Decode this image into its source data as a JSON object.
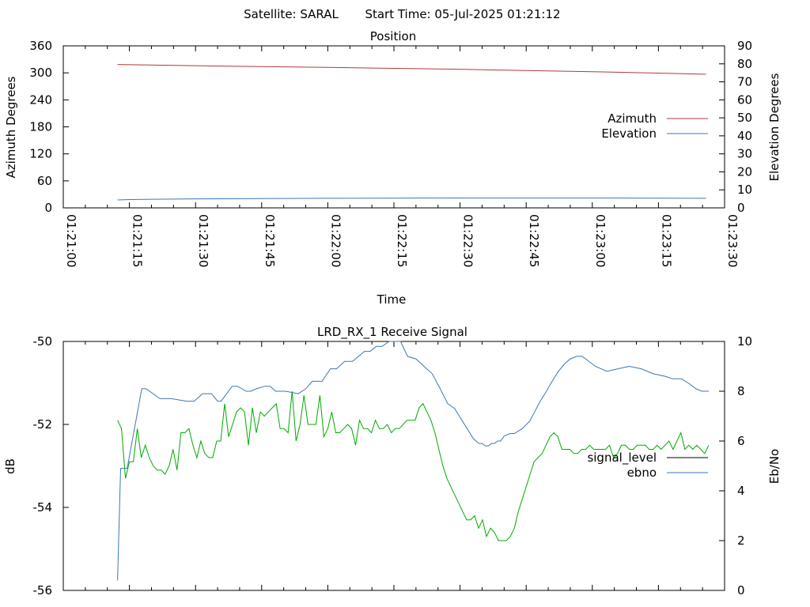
{
  "header": {
    "satellite": "Satellite: SARAL",
    "start_time": "Start Time: 05-Jul-2025 01:21:12"
  },
  "colors": {
    "azimuth": "#b03a3a",
    "elevation": "#3a78b4",
    "signal_level": "#00aa00",
    "ebno": "#3a78b4",
    "signal_legend": "#000000"
  },
  "chart_data": [
    {
      "type": "line",
      "title": "Position",
      "xlabel": "Time",
      "ylabel": "Azimuth Degrees",
      "y2label": "Elevation Degrees",
      "xlim": [
        0,
        150
      ],
      "ylim": [
        0,
        360
      ],
      "y2lim": [
        0,
        90
      ],
      "x_ticks": [
        "01:21:00",
        "01:21:15",
        "01:21:30",
        "01:21:45",
        "01:22:00",
        "01:22:15",
        "01:22:30",
        "01:22:45",
        "01:23:00",
        "01:23:15",
        "01:23:30"
      ],
      "y_ticks": [
        "0",
        "60",
        "120",
        "180",
        "240",
        "300",
        "360"
      ],
      "y2_ticks": [
        "0",
        "10",
        "20",
        "30",
        "40",
        "50",
        "60",
        "70",
        "80",
        "90"
      ],
      "legend_position": "right",
      "series": [
        {
          "name": "Azimuth",
          "axis": "y",
          "color_key": "azimuth",
          "x": [
            12.3,
            30,
            45,
            60,
            75,
            90,
            105,
            120,
            135,
            145.8
          ],
          "values": [
            318.5,
            316,
            314,
            312,
            310,
            308,
            305,
            302.5,
            299.5,
            297
          ]
        },
        {
          "name": "Elevation",
          "axis": "y2",
          "color_key": "elevation",
          "x": [
            12.3,
            15,
            20,
            30,
            45,
            60,
            75,
            90,
            105,
            120,
            135,
            145.8
          ],
          "values": [
            4.4,
            4.6,
            4.8,
            5.0,
            5.2,
            5.3,
            5.4,
            5.5,
            5.5,
            5.5,
            5.4,
            5.3
          ]
        }
      ]
    },
    {
      "type": "line",
      "title": "LRD_RX_1 Receive Signal",
      "xlabel": "",
      "ylabel": "dB",
      "y2label": "Eb/No",
      "xlim": [
        0,
        150
      ],
      "ylim": [
        -56,
        -50
      ],
      "y2lim": [
        0,
        10
      ],
      "x_ticks_labeled": false,
      "x_tick_count": 11,
      "y_ticks": [
        "-50",
        "-52",
        "-54",
        "-56"
      ],
      "y_tick_values": [
        -50,
        -52,
        -54,
        -56
      ],
      "y2_ticks": [
        "0",
        "2",
        "4",
        "6",
        "8",
        "10"
      ],
      "legend_position": "right",
      "series": [
        {
          "name": "signal_level",
          "axis": "y",
          "color_key": "signal_level",
          "legend_color_key": "signal_legend",
          "x": [
            12.3,
            13.2,
            14.1,
            15.0,
            15.9,
            16.8,
            17.7,
            18.6,
            19.5,
            20.4,
            21.3,
            22.2,
            23.1,
            24.0,
            24.9,
            25.8,
            26.7,
            27.6,
            28.5,
            29.4,
            30.3,
            31.2,
            32.1,
            33.0,
            33.9,
            34.8,
            35.7,
            36.6,
            37.5,
            38.4,
            39.3,
            40.2,
            41.1,
            42.0,
            42.9,
            43.8,
            44.7,
            45.6,
            46.5,
            47.4,
            48.3,
            49.2,
            50.1,
            51.0,
            51.9,
            52.8,
            53.7,
            54.6,
            55.5,
            56.4,
            57.3,
            58.2,
            59.1,
            60.0,
            60.9,
            61.8,
            62.7,
            63.6,
            64.5,
            65.4,
            66.3,
            67.2,
            68.1,
            69.0,
            69.9,
            70.8,
            71.7,
            72.6,
            73.5,
            74.4,
            75.3,
            76.2,
            77.1,
            78.0,
            78.9,
            79.8,
            80.7,
            81.6,
            82.5,
            83.4,
            84.3,
            85.2,
            86.1,
            87.0,
            87.9,
            88.8,
            89.7,
            90.6,
            91.5,
            92.4,
            93.3,
            94.2,
            95.1,
            96.0,
            96.9,
            97.8,
            98.7,
            99.6,
            100.5,
            101.4,
            102.3,
            103.2,
            104.1,
            105.0,
            105.9,
            106.8,
            107.7,
            108.6,
            109.5,
            110.4,
            111.3,
            112.2,
            113.1,
            114.0,
            114.9,
            115.8,
            116.7,
            117.6,
            118.5,
            119.4,
            120.3,
            121.2,
            122.1,
            123.0,
            123.9,
            124.8,
            125.7,
            126.6,
            127.5,
            128.4,
            129.3,
            130.2,
            131.1,
            132.0,
            132.9,
            133.8,
            134.7,
            135.6,
            136.5,
            137.4,
            138.3,
            139.2,
            140.1,
            141.0,
            141.9,
            142.8,
            143.7,
            144.6,
            145.5,
            146.4
          ],
          "values": [
            -51.9,
            -52.1,
            -53.3,
            -52.9,
            -52.9,
            -52.1,
            -52.8,
            -52.5,
            -52.8,
            -53.0,
            -53.1,
            -53.1,
            -53.2,
            -53.0,
            -52.6,
            -53.1,
            -52.2,
            -52.2,
            -52.1,
            -52.5,
            -52.8,
            -52.4,
            -52.7,
            -52.8,
            -52.8,
            -52.4,
            -52.4,
            -51.5,
            -52.3,
            -52.0,
            -51.7,
            -51.6,
            -51.7,
            -52.5,
            -51.6,
            -52.2,
            -51.7,
            -51.8,
            -51.7,
            -51.6,
            -51.5,
            -52.1,
            -52.1,
            -52.2,
            -51.2,
            -52.4,
            -52.0,
            -51.3,
            -52.0,
            -52.0,
            -52.0,
            -51.3,
            -52.3,
            -52.1,
            -51.7,
            -52.2,
            -52.2,
            -52.1,
            -52.0,
            -52.1,
            -52.5,
            -51.9,
            -52.1,
            -52.1,
            -52.2,
            -51.9,
            -52.1,
            -52.1,
            -52.0,
            -52.2,
            -52.1,
            -52.1,
            -52.0,
            -51.9,
            -51.9,
            -51.9,
            -51.6,
            -51.5,
            -51.7,
            -51.9,
            -52.2,
            -52.6,
            -53.0,
            -53.3,
            -53.5,
            -53.7,
            -53.9,
            -54.1,
            -54.3,
            -54.3,
            -54.2,
            -54.5,
            -54.3,
            -54.7,
            -54.5,
            -54.6,
            -54.8,
            -54.8,
            -54.8,
            -54.7,
            -54.5,
            -54.1,
            -53.8,
            -53.5,
            -53.2,
            -52.9,
            -52.8,
            -52.7,
            -52.5,
            -52.3,
            -52.2,
            -52.3,
            -52.6,
            -52.6,
            -52.6,
            -52.7,
            -52.7,
            -52.6,
            -52.6,
            -52.5,
            -52.6,
            -52.6,
            -52.6,
            -52.6,
            -52.5,
            -52.8,
            -52.7,
            -52.5,
            -52.5,
            -52.6,
            -52.6,
            -52.5,
            -52.5,
            -52.5,
            -52.6,
            -52.6,
            -52.5,
            -52.6,
            -52.5,
            -52.4,
            -52.6,
            -52.4,
            -52.2,
            -52.6,
            -52.5,
            -52.6,
            -52.5,
            -52.6,
            -52.7,
            -52.5
          ],
          "values_note": ""
        },
        {
          "name": "ebno",
          "axis": "y2",
          "color_key": "ebno",
          "x": [
            12.3,
            13.0,
            14.5,
            17.8,
            18.8,
            21.9,
            23.5,
            24.5,
            28.0,
            29.7,
            31.6,
            33.6,
            35.0,
            35.8,
            38.3,
            39.5,
            41.5,
            42.6,
            43.8,
            45.7,
            46.9,
            48.2,
            50.4,
            53.3,
            55.0,
            56.5,
            58.7,
            60.6,
            62.0,
            63.8,
            65.6,
            68.3,
            69.6,
            71.0,
            72.3,
            73.9,
            76.5,
            78.1,
            80.0,
            83.7,
            85.5,
            87.2,
            88.8,
            89.5,
            90.2,
            90.9,
            91.6,
            92.3,
            93.0,
            93.6,
            94.3,
            95.0,
            95.7,
            96.4,
            97.1,
            97.8,
            98.5,
            99.2,
            100.0,
            101.4,
            102.3,
            103.2,
            104.1,
            105.8,
            107.0,
            108.2,
            109.6,
            110.9,
            112.3,
            113.7,
            115.0,
            116.4,
            117.7,
            120.7,
            123.3,
            125.8,
            128.4,
            131.1,
            133.9,
            136.5,
            138.3,
            140.2,
            142.0,
            143.5,
            144.9,
            146.4
          ],
          "values": [
            0.4,
            4.9,
            4.9,
            8.1,
            8.1,
            7.7,
            7.7,
            7.7,
            7.6,
            7.6,
            7.9,
            7.9,
            7.6,
            7.6,
            8.2,
            8.2,
            8.0,
            8.0,
            8.1,
            8.2,
            8.2,
            8.0,
            8.0,
            7.9,
            8.1,
            8.4,
            8.4,
            8.9,
            8.9,
            9.2,
            9.2,
            9.6,
            9.6,
            9.8,
            9.8,
            10.0,
            10.0,
            9.4,
            9.3,
            8.7,
            8.1,
            7.5,
            7.3,
            7.1,
            6.9,
            6.7,
            6.5,
            6.3,
            6.1,
            6.0,
            5.9,
            5.9,
            5.8,
            5.8,
            5.9,
            5.9,
            6.0,
            6.0,
            6.2,
            6.3,
            6.3,
            6.4,
            6.5,
            6.8,
            7.2,
            7.6,
            8.0,
            8.4,
            8.8,
            9.1,
            9.3,
            9.4,
            9.4,
            9.0,
            8.8,
            8.9,
            9.0,
            8.9,
            8.7,
            8.6,
            8.5,
            8.5,
            8.3,
            8.1,
            8.0,
            8.0
          ]
        }
      ]
    }
  ]
}
